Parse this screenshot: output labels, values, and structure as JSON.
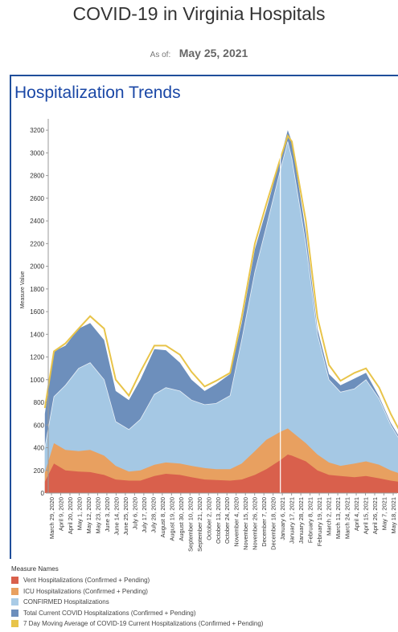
{
  "header": {
    "title": "COVID-19 in Virginia Hospitals",
    "asof_label": "As of:",
    "asof_date": "May 25, 2021"
  },
  "chart_title": "Hospitalization Trends",
  "legend": {
    "title": "Measure Names",
    "items": [
      {
        "label": "Vent Hospitalizations (Confirmed + Pending)",
        "color": "#d9604c"
      },
      {
        "label": "ICU Hospitalizations (Confirmed + Pending)",
        "color": "#e8a060"
      },
      {
        "label": "CONFIRMED Hospitalizations",
        "color": "#a9cbe6"
      },
      {
        "label": "Total Current COVID Hospitalizations (Confirmed + Pending)",
        "color": "#6d8fbc"
      },
      {
        "label": "7 Day Moving Average of COVID-19 Current Hospitalizations (Confirmed + Pending)",
        "color": "#e8c44a"
      }
    ]
  },
  "chart_data": {
    "type": "area",
    "title": "Hospitalization Trends",
    "ylabel": "Measure Value",
    "ylim": [
      0,
      3300
    ],
    "yticks": [
      0,
      200,
      400,
      600,
      800,
      1000,
      1200,
      1400,
      1600,
      1800,
      2000,
      2200,
      2400,
      2600,
      2800,
      3000,
      3200
    ],
    "grid": false,
    "legend_position": "bottom",
    "x_tick_labels": [
      "March 29, 2020",
      "April 9, 2020",
      "April 20, 2020",
      "May 1, 2020",
      "May 12, 2020",
      "May 23, 2020",
      "June 3, 2020",
      "June 14, 2020",
      "June 25, 2020",
      "July 6, 2020",
      "July 17, 2020",
      "July 28, 2020",
      "August 8, 2020",
      "August 19, 2020",
      "August 30, 2020",
      "September 10, 2020",
      "September 21, 2020",
      "October 2, 2020",
      "October 13, 2020",
      "October 24, 2020",
      "November 4, 2020",
      "November 15, 2020",
      "November 26, 2020",
      "December 7, 2020",
      "December 18, 2020",
      "January 6, 2021",
      "January 17, 2021",
      "January 28, 2021",
      "February 8, 2021",
      "February 19, 2021",
      "March 2, 2021",
      "March 13, 2021",
      "March 24, 2021",
      "April 4, 2021",
      "April 15, 2021",
      "April 26, 2021",
      "May 7, 2021",
      "May 18, 2021"
    ],
    "x_dates": [
      "2020-03-21",
      "2020-04-01",
      "2020-04-15",
      "2020-05-01",
      "2020-05-15",
      "2020-06-01",
      "2020-06-15",
      "2020-07-01",
      "2020-07-15",
      "2020-08-01",
      "2020-08-15",
      "2020-09-01",
      "2020-09-15",
      "2020-10-01",
      "2020-10-15",
      "2020-11-01",
      "2020-11-15",
      "2020-12-01",
      "2020-12-15",
      "2021-01-01",
      "2021-01-10",
      "2021-01-15",
      "2021-02-01",
      "2021-02-15",
      "2021-03-01",
      "2021-03-15",
      "2021-04-01",
      "2021-04-15",
      "2021-05-01",
      "2021-05-15",
      "2021-05-25"
    ],
    "series": [
      {
        "name": "Vent Hospitalizations (Confirmed + Pending)",
        "values": [
          100,
          260,
          200,
          190,
          185,
          160,
          120,
          110,
          110,
          150,
          170,
          160,
          140,
          120,
          115,
          110,
          120,
          160,
          210,
          290,
          340,
          330,
          280,
          200,
          160,
          150,
          140,
          150,
          130,
          110,
          100
        ]
      },
      {
        "name": "ICU Hospitalizations (Confirmed + Pending)",
        "values": [
          180,
          440,
          380,
          370,
          380,
          330,
          240,
          190,
          200,
          250,
          270,
          260,
          240,
          220,
          210,
          210,
          260,
          370,
          470,
          540,
          570,
          540,
          440,
          340,
          270,
          240,
          260,
          280,
          250,
          200,
          175
        ]
      },
      {
        "name": "CONFIRMED Hospitalizations",
        "values": [
          400,
          850,
          950,
          1100,
          1150,
          1000,
          630,
          560,
          650,
          870,
          930,
          900,
          820,
          780,
          790,
          860,
          1350,
          1950,
          2350,
          2850,
          3100,
          2950,
          2200,
          1400,
          1000,
          890,
          920,
          1000,
          830,
          600,
          480
        ]
      },
      {
        "name": "Total Current COVID Hospitalizations (Confirmed + Pending)",
        "values": [
          700,
          1250,
          1300,
          1450,
          1500,
          1350,
          900,
          820,
          1000,
          1270,
          1260,
          1150,
          1000,
          900,
          960,
          1050,
          1500,
          2150,
          2500,
          2950,
          3200,
          3100,
          2300,
          1450,
          1050,
          950,
          1010,
          1060,
          850,
          620,
          500
        ]
      },
      {
        "name": "7 Day Moving Average of COVID-19 Current Hospitalizations (Confirmed + Pending)",
        "values": [
          750,
          1250,
          1320,
          1450,
          1560,
          1450,
          1000,
          860,
          1070,
          1300,
          1300,
          1220,
          1070,
          940,
          990,
          1060,
          1550,
          2200,
          2550,
          2950,
          3150,
          3100,
          2400,
          1550,
          1130,
          990,
          1060,
          1100,
          930,
          700,
          560
        ]
      }
    ]
  }
}
